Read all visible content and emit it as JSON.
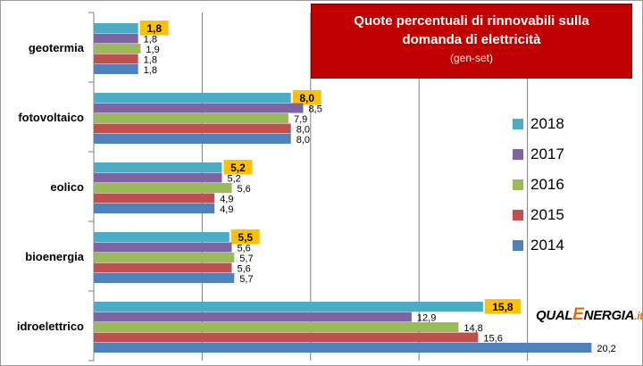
{
  "chart_data": {
    "type": "bar",
    "orientation": "horizontal",
    "title": "Quote percentuali di rinnovabili sulla domanda di elettricità",
    "subtitle": "(gen-set)",
    "categories": [
      "geotermia",
      "fotovoltaico",
      "eolico",
      "bioenergia",
      "idroelettrico"
    ],
    "series": [
      {
        "name": "2018",
        "color": "#4bacc6",
        "values": [
          1.8,
          8.0,
          5.2,
          5.5,
          15.8
        ],
        "labels": [
          "1,8",
          "8,0",
          "5,2",
          "5,5",
          "15,8"
        ]
      },
      {
        "name": "2017",
        "color": "#8064a2",
        "values": [
          1.8,
          8.5,
          5.2,
          5.6,
          12.9
        ],
        "labels": [
          "1,8",
          "8,5",
          "5,2",
          "5,6",
          "12,9"
        ]
      },
      {
        "name": "2016",
        "color": "#9bbb59",
        "values": [
          1.9,
          7.9,
          5.6,
          5.7,
          14.8
        ],
        "labels": [
          "1,9",
          "7,9",
          "5,6",
          "5,7",
          "14,8"
        ]
      },
      {
        "name": "2015",
        "color": "#c0504d",
        "values": [
          1.8,
          8.0,
          4.9,
          5.6,
          15.6
        ],
        "labels": [
          "1,8",
          "8,0",
          "4,9",
          "5,6",
          "15,6"
        ]
      },
      {
        "name": "2014",
        "color": "#4f81bd",
        "values": [
          1.8,
          8.0,
          4.9,
          5.7,
          20.2
        ],
        "labels": [
          "1,8",
          "8,0",
          "4,9",
          "5,7",
          "20,2"
        ]
      }
    ],
    "highlight_series": "2018",
    "highlight_color": "#ffc000",
    "xlim": [
      0,
      22
    ],
    "gridlines": "vertical",
    "legend_position": "right",
    "legend_order": [
      "2018",
      "2017",
      "2016",
      "2015",
      "2014"
    ]
  },
  "logo": {
    "part1": "QUAL",
    "part2": "E",
    "part3": "NERGIA",
    "part4": ".it"
  }
}
